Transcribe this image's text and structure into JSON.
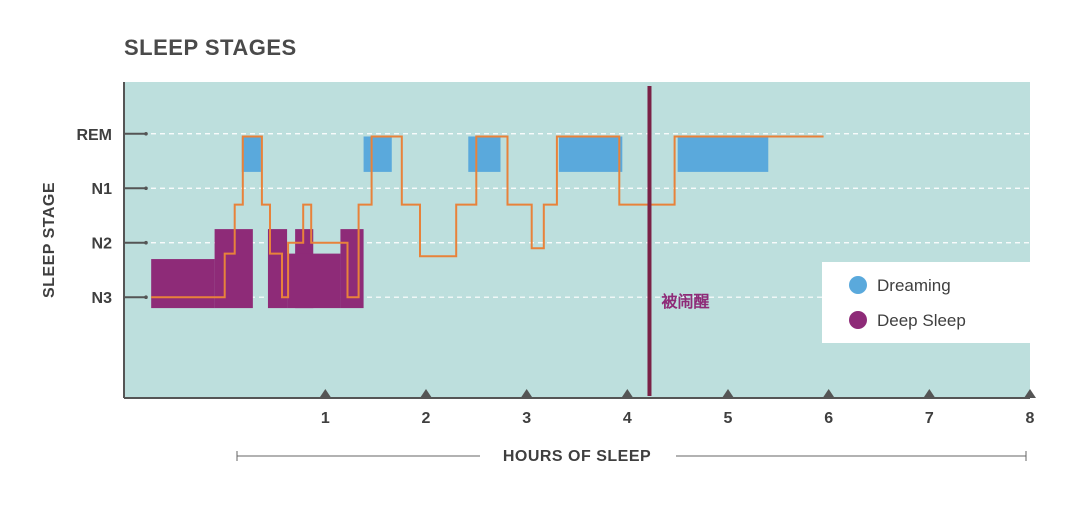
{
  "chart_data": {
    "type": "sleep-hypnogram",
    "title": "SLEEP STAGES",
    "xlabel": "HOURS OF SLEEP",
    "ylabel": "SLEEP STAGE",
    "x_ticks": [
      1,
      2,
      3,
      4,
      5,
      6,
      7,
      8
    ],
    "xlim": [
      -1.0,
      8.0
    ],
    "y_stages": [
      "REM",
      "N1",
      "N2",
      "N3"
    ],
    "ylim": [
      -0.85,
      4.95
    ],
    "stage_value": {
      "REM": 4,
      "N1": 3,
      "N2": 2,
      "N3": 1
    },
    "grid": true,
    "hypnogram_line": {
      "color": "#e8823a",
      "points": [
        [
          -0.73,
          1.0
        ],
        [
          0.0,
          1.0
        ],
        [
          0.0,
          1.8
        ],
        [
          0.1,
          1.8
        ],
        [
          0.1,
          2.7
        ],
        [
          0.18,
          2.7
        ],
        [
          0.18,
          3.95
        ],
        [
          0.37,
          3.95
        ],
        [
          0.37,
          2.7
        ],
        [
          0.45,
          2.7
        ],
        [
          0.45,
          1.8
        ],
        [
          0.57,
          1.8
        ],
        [
          0.57,
          1.0
        ],
        [
          0.63,
          1.0
        ],
        [
          0.63,
          2.0
        ],
        [
          0.78,
          2.0
        ],
        [
          0.78,
          2.7
        ],
        [
          0.86,
          2.7
        ],
        [
          0.86,
          2.0
        ],
        [
          1.22,
          2.0
        ],
        [
          1.22,
          1.0
        ],
        [
          1.33,
          1.0
        ],
        [
          1.33,
          2.7
        ],
        [
          1.46,
          2.7
        ],
        [
          1.46,
          3.95
        ],
        [
          1.76,
          3.95
        ],
        [
          1.76,
          2.7
        ],
        [
          1.94,
          2.7
        ],
        [
          1.94,
          1.75
        ],
        [
          2.3,
          1.75
        ],
        [
          2.3,
          2.7
        ],
        [
          2.5,
          2.7
        ],
        [
          2.5,
          3.95
        ],
        [
          2.81,
          3.95
        ],
        [
          2.81,
          2.7
        ],
        [
          3.05,
          2.7
        ],
        [
          3.05,
          1.9
        ],
        [
          3.17,
          1.9
        ],
        [
          3.17,
          2.7
        ],
        [
          3.3,
          2.7
        ],
        [
          3.3,
          3.95
        ],
        [
          3.92,
          3.95
        ],
        [
          3.92,
          2.7
        ],
        [
          4.47,
          2.7
        ],
        [
          4.47,
          3.95
        ],
        [
          5.95,
          3.95
        ]
      ]
    },
    "dreaming_blocks": [
      [
        0.17,
        0.36,
        3.3,
        3.95
      ],
      [
        1.38,
        1.66,
        3.3,
        3.95
      ],
      [
        2.42,
        2.74,
        3.3,
        3.95
      ],
      [
        3.32,
        3.95,
        3.3,
        3.95
      ],
      [
        4.5,
        5.4,
        3.3,
        3.95
      ]
    ],
    "deep_sleep_blocks": [
      [
        -0.73,
        -0.1,
        0.8,
        1.7
      ],
      [
        -0.1,
        0.28,
        0.8,
        2.25
      ],
      [
        0.43,
        0.62,
        0.8,
        2.25
      ],
      [
        0.7,
        0.88,
        0.8,
        2.25
      ],
      [
        0.62,
        1.15,
        0.8,
        1.8
      ],
      [
        1.15,
        1.38,
        0.8,
        2.25
      ]
    ],
    "wake_marker": {
      "x": 4.22,
      "label": "被闹醒"
    },
    "legend": {
      "position": "right",
      "items": [
        {
          "label": "Dreaming",
          "color": "#5aa9dc"
        },
        {
          "label": "Deep Sleep",
          "color": "#8e2b78"
        }
      ]
    },
    "colors": {
      "background": "#bddfdd",
      "axis": "#555555",
      "grid": "#ffffff",
      "dreaming": "#5aa9dc",
      "deep_sleep": "#8e2b78",
      "line": "#e8823a",
      "wake": "#7a2146"
    }
  }
}
